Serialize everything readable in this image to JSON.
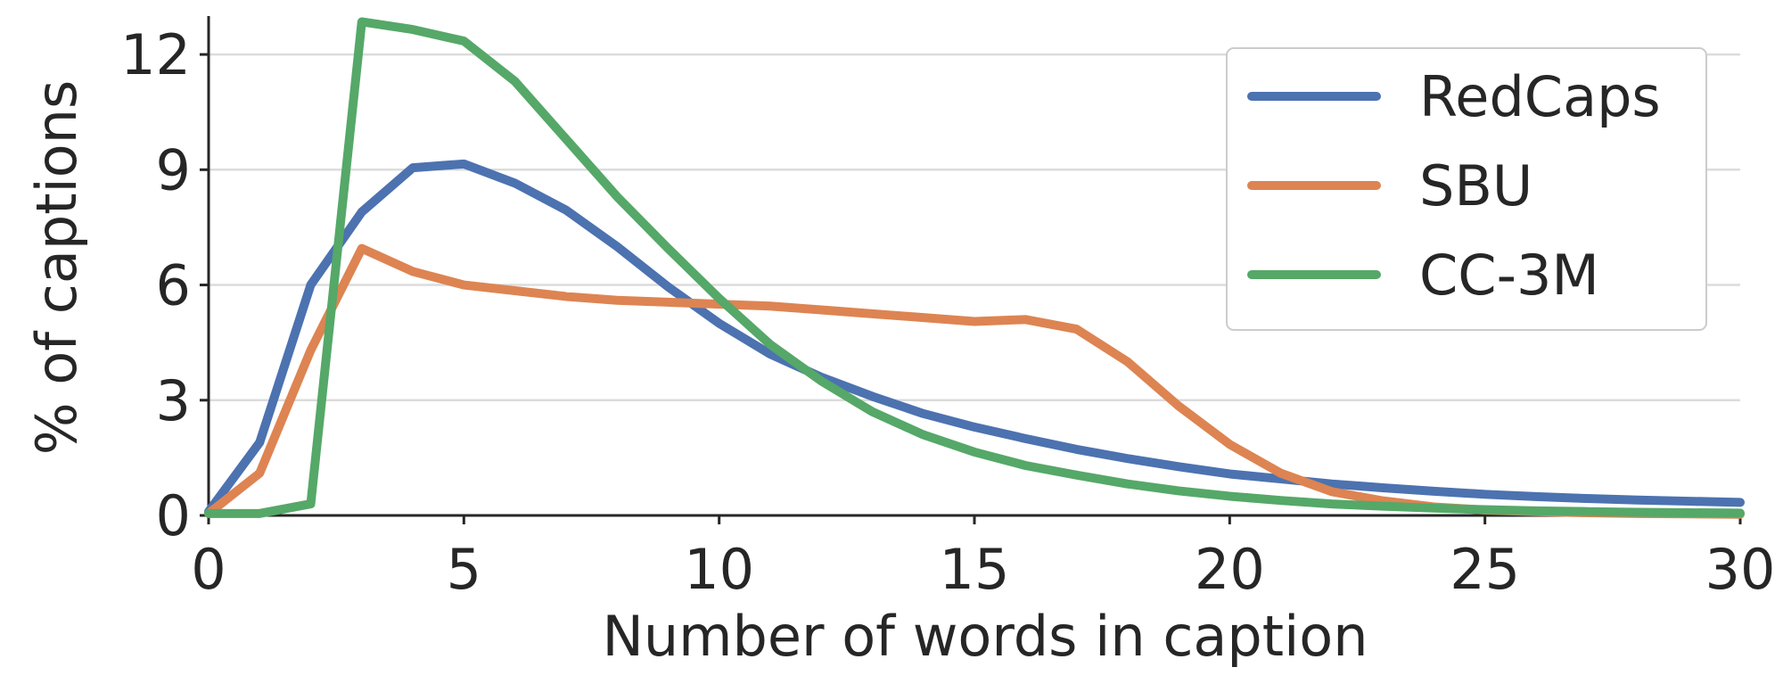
{
  "chart_data": {
    "type": "line",
    "title": "",
    "xlabel": "Number of words in caption",
    "ylabel": "% of captions",
    "xlim": [
      0,
      30
    ],
    "ylim": [
      0,
      13
    ],
    "xticks": [
      0,
      5,
      10,
      15,
      20,
      25,
      30
    ],
    "yticks": [
      0,
      3,
      6,
      9,
      12
    ],
    "grid": "horizontal",
    "legend_position": "top-right",
    "x": [
      0,
      1,
      2,
      3,
      4,
      5,
      6,
      7,
      8,
      9,
      10,
      11,
      12,
      13,
      14,
      15,
      16,
      17,
      18,
      19,
      20,
      21,
      22,
      23,
      24,
      25,
      26,
      27,
      28,
      29,
      30
    ],
    "series": [
      {
        "name": "RedCaps",
        "color": "#4c72b0",
        "values": [
          0.1,
          1.9,
          6.0,
          7.9,
          9.05,
          9.15,
          8.65,
          7.95,
          7.0,
          5.95,
          5.0,
          4.2,
          3.6,
          3.1,
          2.65,
          2.3,
          2.0,
          1.72,
          1.48,
          1.27,
          1.08,
          0.95,
          0.82,
          0.72,
          0.63,
          0.55,
          0.49,
          0.44,
          0.4,
          0.37,
          0.34
        ]
      },
      {
        "name": "SBU",
        "color": "#dd8452",
        "values": [
          0.05,
          1.1,
          4.3,
          6.95,
          6.35,
          6.0,
          5.85,
          5.7,
          5.6,
          5.55,
          5.5,
          5.45,
          5.35,
          5.25,
          5.15,
          5.05,
          5.1,
          4.85,
          4.0,
          2.85,
          1.85,
          1.1,
          0.62,
          0.38,
          0.22,
          0.14,
          0.1,
          0.07,
          0.05,
          0.04,
          0.03
        ]
      },
      {
        "name": "CC-3M",
        "color": "#55a868",
        "values": [
          0.05,
          0.05,
          0.3,
          12.85,
          12.65,
          12.35,
          11.3,
          9.8,
          8.3,
          6.95,
          5.65,
          4.45,
          3.5,
          2.7,
          2.1,
          1.65,
          1.3,
          1.05,
          0.82,
          0.64,
          0.5,
          0.39,
          0.3,
          0.24,
          0.19,
          0.15,
          0.12,
          0.1,
          0.08,
          0.07,
          0.06
        ]
      }
    ]
  }
}
